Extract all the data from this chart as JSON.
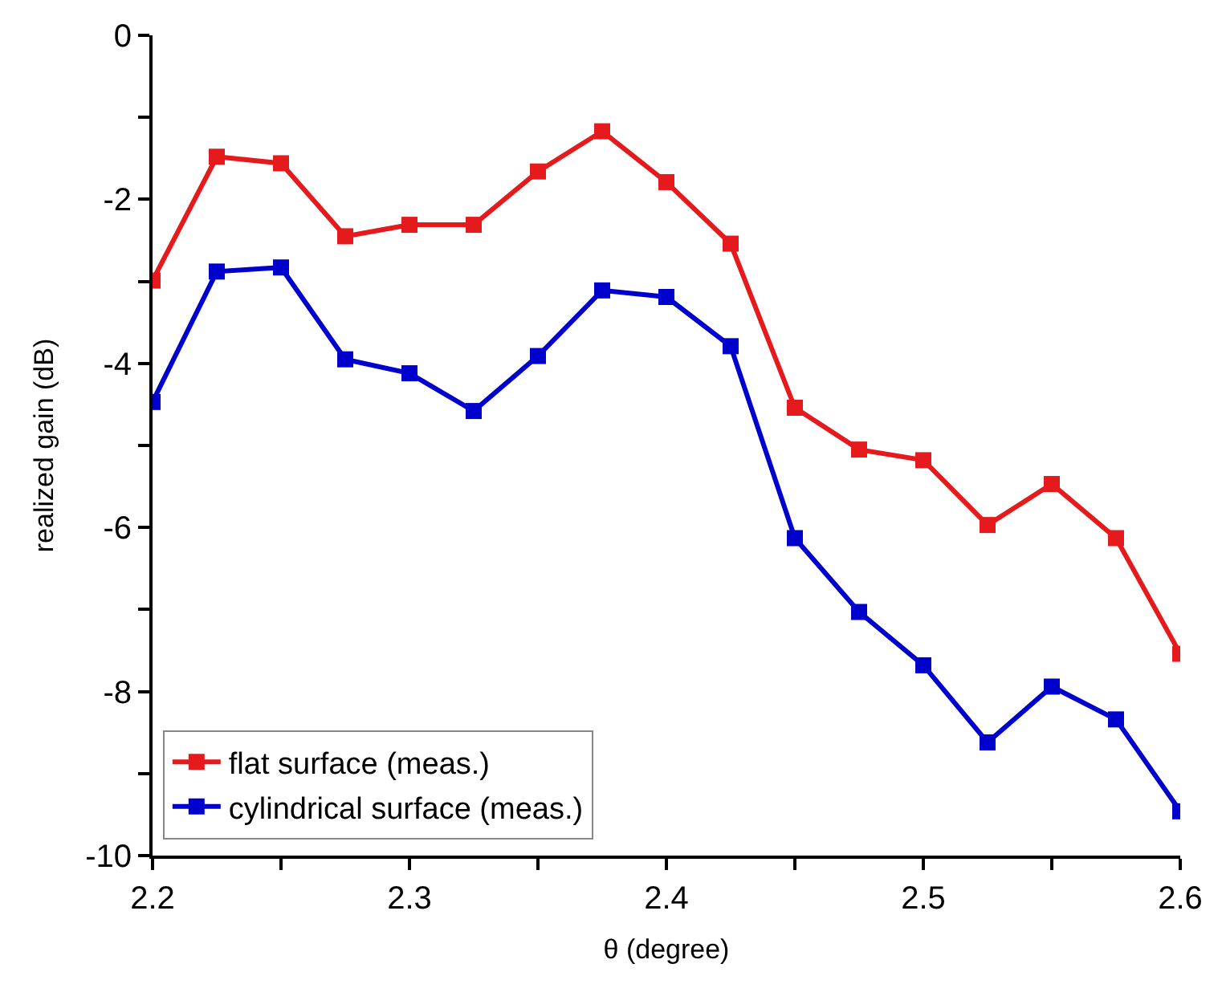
{
  "chart_data": {
    "type": "line",
    "xlabel": "θ (degree)",
    "ylabel": "realized gain (dB)",
    "x": [
      2.2,
      2.225,
      2.25,
      2.275,
      2.3,
      2.325,
      2.35,
      2.375,
      2.4,
      2.425,
      2.45,
      2.475,
      2.5,
      2.525,
      2.55,
      2.575,
      2.6
    ],
    "series": [
      {
        "name": "flat surface (meas.)",
        "color": "#e41a1c",
        "values": [
          -2.99,
          -1.48,
          -1.56,
          -2.45,
          -2.31,
          -2.31,
          -1.66,
          -1.17,
          -1.79,
          -2.54,
          -4.54,
          -5.05,
          -5.18,
          -5.97,
          -5.47,
          -6.13,
          -7.54
        ]
      },
      {
        "name": "cylindrical surface (meas.)",
        "color": "#0000cc",
        "values": [
          -4.47,
          -2.88,
          -2.83,
          -3.95,
          -4.12,
          -4.58,
          -3.91,
          -3.11,
          -3.19,
          -3.79,
          -6.13,
          -7.03,
          -7.68,
          -8.62,
          -7.94,
          -8.34,
          -9.46
        ]
      }
    ],
    "xlim": [
      2.2,
      2.6
    ],
    "xticks": [
      2.2,
      {
        "value": 2.25,
        "label": null
      },
      2.3,
      {
        "value": 2.35,
        "label": null
      },
      2.4,
      {
        "value": 2.45,
        "label": null
      },
      2.5,
      {
        "value": 2.55,
        "label": null
      },
      2.6
    ],
    "ylim": [
      -10,
      0
    ],
    "yticks": [
      -10,
      {
        "value": -9,
        "label": null
      },
      -8,
      {
        "value": -7,
        "label": null
      },
      -6,
      {
        "value": -5,
        "label": null
      },
      -4,
      {
        "value": -3,
        "label": null
      },
      -2,
      {
        "value": -1,
        "label": null
      },
      0
    ],
    "legend": "bottom left",
    "marker": "square",
    "line_style": "solid"
  }
}
